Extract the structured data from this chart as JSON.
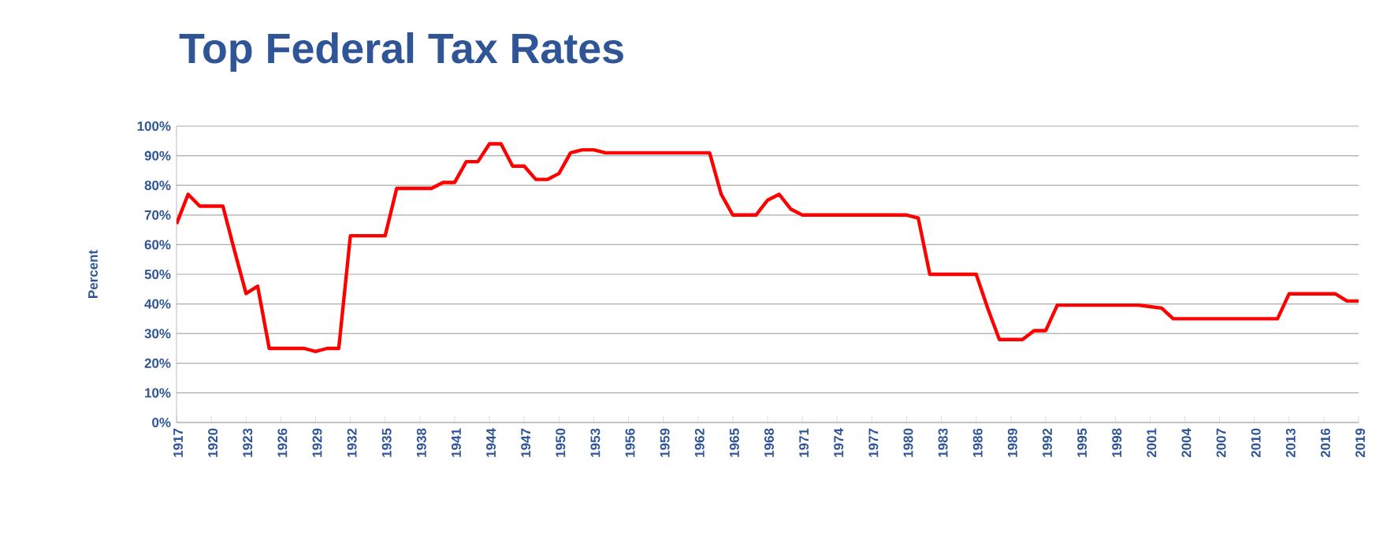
{
  "chart_data": {
    "type": "line",
    "title": "Top Federal Tax Rates",
    "ylabel": "Percent",
    "x": [
      1917,
      1918,
      1919,
      1920,
      1921,
      1922,
      1923,
      1924,
      1925,
      1926,
      1927,
      1928,
      1929,
      1930,
      1931,
      1932,
      1933,
      1934,
      1935,
      1936,
      1937,
      1938,
      1939,
      1940,
      1941,
      1942,
      1943,
      1944,
      1945,
      1946,
      1947,
      1948,
      1949,
      1950,
      1951,
      1952,
      1953,
      1954,
      1955,
      1956,
      1957,
      1958,
      1959,
      1960,
      1961,
      1962,
      1963,
      1964,
      1965,
      1966,
      1967,
      1968,
      1969,
      1970,
      1971,
      1972,
      1973,
      1974,
      1975,
      1976,
      1977,
      1978,
      1979,
      1980,
      1981,
      1982,
      1983,
      1984,
      1985,
      1986,
      1987,
      1988,
      1989,
      1990,
      1991,
      1992,
      1993,
      1994,
      1995,
      1996,
      1997,
      1998,
      1999,
      2000,
      2001,
      2002,
      2003,
      2004,
      2005,
      2006,
      2007,
      2008,
      2009,
      2010,
      2011,
      2012,
      2013,
      2014,
      2015,
      2016,
      2017,
      2018,
      2019
    ],
    "series": [
      {
        "color": "#ff0000",
        "values": [
          67,
          77,
          73,
          73,
          73,
          58,
          43.5,
          46,
          25,
          25,
          25,
          25,
          24,
          25,
          25,
          63,
          63,
          63,
          63,
          79,
          79,
          79,
          79,
          81,
          81,
          88,
          88,
          94,
          94,
          86.5,
          86.5,
          82,
          82,
          84,
          91,
          92,
          92,
          91,
          91,
          91,
          91,
          91,
          91,
          91,
          91,
          91,
          91,
          77,
          70,
          70,
          70,
          75,
          77,
          72,
          70,
          70,
          70,
          70,
          70,
          70,
          70,
          70,
          70,
          70,
          69,
          50,
          50,
          50,
          50,
          50,
          38.5,
          28,
          28,
          28,
          31,
          31,
          39.6,
          39.6,
          39.6,
          39.6,
          39.6,
          39.6,
          39.6,
          39.6,
          39.1,
          38.6,
          35,
          35,
          35,
          35,
          35,
          35,
          35,
          35,
          35,
          35,
          43.4,
          43.4,
          43.4,
          43.4,
          43.4,
          41,
          41
        ]
      }
    ],
    "xlim": [
      1917,
      2019
    ],
    "xticks": [
      1917,
      1920,
      1923,
      1926,
      1929,
      1932,
      1935,
      1938,
      1941,
      1944,
      1947,
      1950,
      1953,
      1956,
      1959,
      1962,
      1965,
      1968,
      1971,
      1974,
      1977,
      1980,
      1983,
      1986,
      1989,
      1992,
      1995,
      1998,
      2001,
      2004,
      2007,
      2010,
      2013,
      2016,
      2019
    ],
    "ylim": [
      0,
      100
    ],
    "yticks": [
      {
        "value": 0,
        "label": "0%"
      },
      {
        "value": 10,
        "label": "10%"
      },
      {
        "value": 20,
        "label": "20%"
      },
      {
        "value": 30,
        "label": "30%"
      },
      {
        "value": 40,
        "label": "40%"
      },
      {
        "value": 50,
        "label": "50%"
      },
      {
        "value": 60,
        "label": "60%"
      },
      {
        "value": 70,
        "label": "70%"
      },
      {
        "value": 80,
        "label": "80%"
      },
      {
        "value": 90,
        "label": "90%"
      },
      {
        "value": 100,
        "label": "100%"
      }
    ],
    "grid": "y",
    "line_style": "solid"
  }
}
